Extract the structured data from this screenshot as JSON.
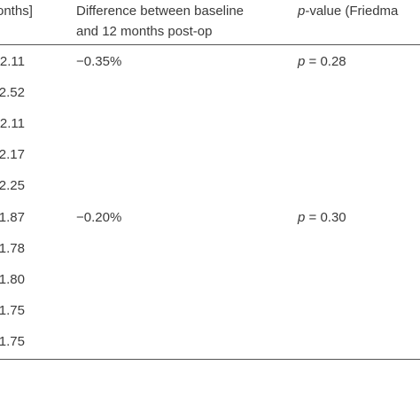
{
  "table": {
    "header": [
      "onths]",
      "Difference between baseline",
      "and 12 months post-op",
      {
        "italic": "p",
        "rest": "-value (Friedma"
      }
    ],
    "rows": [
      [
        "2.11",
        "−0.35%",
        {
          "italic": "p",
          "rest": " = 0.28"
        }
      ],
      [
        "2.52"
      ],
      [
        "2.11"
      ],
      [
        "2.17"
      ],
      [
        "2.25"
      ],
      [
        "1.87",
        "−0.20%",
        {
          "italic": "p",
          "rest": " = 0.30"
        }
      ],
      [
        "1.78"
      ],
      [
        "1.80"
      ],
      [
        "1.75"
      ],
      [
        "1.75"
      ]
    ]
  }
}
